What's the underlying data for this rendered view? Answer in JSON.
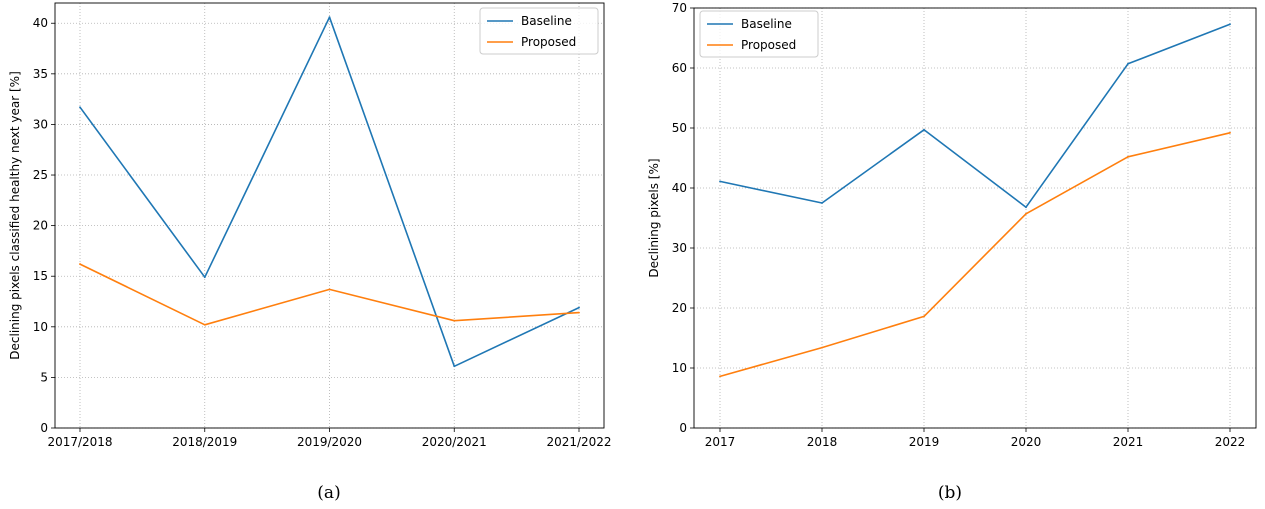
{
  "chart_data": [
    {
      "type": "line",
      "panel_label": "(a)",
      "categories": [
        "2017/2018",
        "2018/2019",
        "2019/2020",
        "2020/2021",
        "2021/2022"
      ],
      "series": [
        {
          "name": "Baseline",
          "color": "#1f77b4",
          "values": [
            31.7,
            14.9,
            40.6,
            6.1,
            11.9
          ]
        },
        {
          "name": "Proposed",
          "color": "#ff7f0e",
          "values": [
            16.2,
            10.2,
            13.7,
            10.6,
            11.4
          ]
        }
      ],
      "title": "",
      "xlabel": "",
      "ylabel": "Declining pixels classified healthy next year [%]",
      "ylim": [
        0,
        42
      ],
      "yticks": [
        0,
        5,
        10,
        15,
        20,
        25,
        30,
        35,
        40
      ],
      "grid": true,
      "legend_position": "upper right"
    },
    {
      "type": "line",
      "panel_label": "(b)",
      "categories": [
        "2017",
        "2018",
        "2019",
        "2020",
        "2021",
        "2022"
      ],
      "series": [
        {
          "name": "Baseline",
          "color": "#1f77b4",
          "values": [
            41.1,
            37.5,
            49.7,
            36.8,
            60.7,
            67.3
          ]
        },
        {
          "name": "Proposed",
          "color": "#ff7f0e",
          "values": [
            8.6,
            13.4,
            18.6,
            35.7,
            45.2,
            49.2
          ]
        }
      ],
      "title": "",
      "xlabel": "",
      "ylabel": "Declining pixels [%]",
      "ylim": [
        0,
        70
      ],
      "yticks": [
        0,
        10,
        20,
        30,
        40,
        50,
        60,
        70
      ],
      "grid": true,
      "legend_position": "upper left"
    }
  ]
}
